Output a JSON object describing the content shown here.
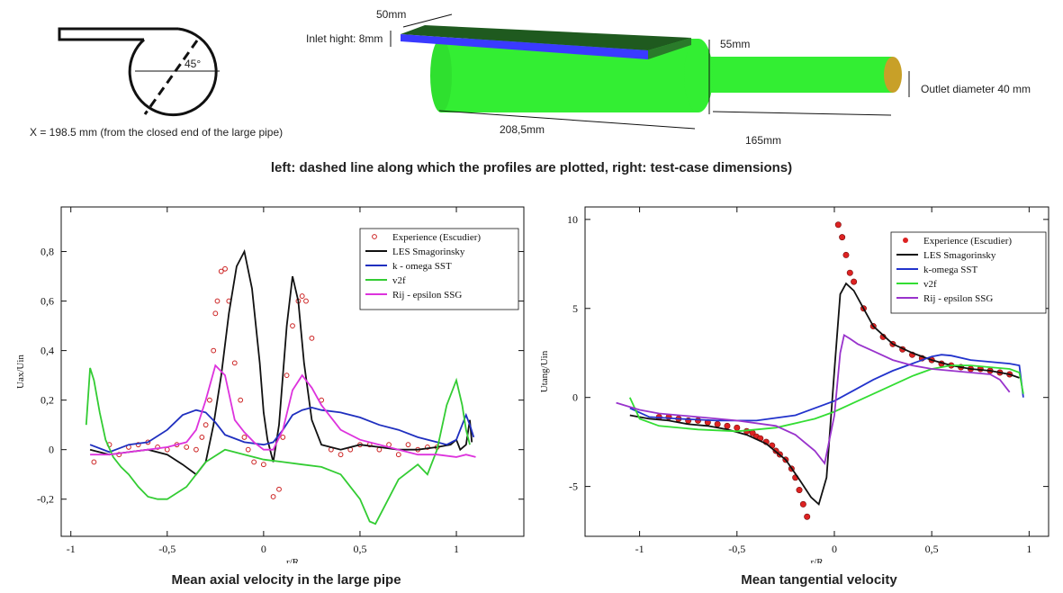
{
  "top": {
    "x_position_note": "X = 198.5 mm (from the closed end of the large pipe)",
    "angle_label": "45°",
    "inlet_width": "50mm",
    "inlet_height": "Inlet hight: 8mm",
    "large_diameter": "55mm",
    "outlet_diameter": "Outlet diameter 40 mm",
    "large_length": "208,5mm",
    "outlet_length": "165mm",
    "caption": "left: dashed line along which the profiles are plotted, right: test-case dimensions)",
    "colors": {
      "pipe": "#33ee33",
      "inlet_top": "#1f5a1f",
      "inlet_edge": "#3a3aff",
      "outlet_end": "#c8a028"
    }
  },
  "chart_data": [
    {
      "type": "line",
      "title": "Mean axial velocity in the large pipe",
      "xlabel": "r/R",
      "ylabel": "Uax/Uin",
      "xlim": [
        -1.05,
        1.35
      ],
      "ylim": [
        -0.35,
        0.98
      ],
      "xticks": [
        -1,
        -0.5,
        0,
        0.5,
        1
      ],
      "xtick_labels": [
        "-1",
        "-0,5",
        "0",
        "0,5",
        "1"
      ],
      "yticks": [
        -0.2,
        0,
        0.2,
        0.4,
        0.6,
        0.8
      ],
      "ytick_labels": [
        "-0,2",
        "0",
        "0,2",
        "0,4",
        "0,6",
        "0,8"
      ],
      "legend_position": "top-right",
      "series": [
        {
          "name": "Experience (Escudier)",
          "kind": "points",
          "color": "#cc2222",
          "x": [
            -0.88,
            -0.8,
            -0.75,
            -0.7,
            -0.65,
            -0.6,
            -0.55,
            -0.5,
            -0.45,
            -0.4,
            -0.35,
            -0.32,
            -0.3,
            -0.28,
            -0.26,
            -0.25,
            -0.24,
            -0.22,
            -0.2,
            -0.18,
            -0.15,
            -0.12,
            -0.1,
            -0.08,
            -0.05,
            0,
            0.05,
            0.08,
            0.1,
            0.12,
            0.15,
            0.18,
            0.2,
            0.22,
            0.25,
            0.3,
            0.35,
            0.4,
            0.45,
            0.5,
            0.55,
            0.6,
            0.65,
            0.7,
            0.75,
            0.8,
            0.85,
            0.9
          ],
          "y": [
            -0.05,
            0.02,
            -0.02,
            0.01,
            0.02,
            0.03,
            0.01,
            0.0,
            0.02,
            0.01,
            0.0,
            0.05,
            0.1,
            0.2,
            0.4,
            0.55,
            0.6,
            0.72,
            0.73,
            0.6,
            0.35,
            0.2,
            0.05,
            0.0,
            -0.05,
            -0.06,
            -0.19,
            -0.16,
            0.05,
            0.3,
            0.5,
            0.6,
            0.62,
            0.6,
            0.45,
            0.2,
            0.0,
            -0.02,
            0.0,
            0.02,
            0.02,
            0.0,
            0.02,
            -0.02,
            0.02,
            0.0,
            0.01,
            0.01
          ]
        },
        {
          "name": "LES Smagorinsky",
          "kind": "line",
          "color": "#111111",
          "x": [
            -0.9,
            -0.8,
            -0.7,
            -0.6,
            -0.5,
            -0.42,
            -0.35,
            -0.3,
            -0.26,
            -0.22,
            -0.18,
            -0.14,
            -0.1,
            -0.06,
            -0.02,
            0,
            0.02,
            0.05,
            0.08,
            0.12,
            0.15,
            0.18,
            0.21,
            0.25,
            0.3,
            0.4,
            0.5,
            0.6,
            0.7,
            0.8,
            0.9,
            0.97,
            1.0,
            1.02,
            1.05,
            1.07,
            1.08
          ],
          "y": [
            0.0,
            -0.02,
            -0.01,
            0.0,
            -0.02,
            -0.06,
            -0.1,
            -0.05,
            0.1,
            0.3,
            0.55,
            0.74,
            0.8,
            0.65,
            0.35,
            0.15,
            0.04,
            -0.05,
            0.1,
            0.5,
            0.7,
            0.6,
            0.35,
            0.12,
            0.02,
            0.0,
            0.02,
            0.01,
            0.0,
            0.0,
            0.01,
            0.02,
            0.04,
            0.0,
            0.02,
            0.12,
            0.03
          ]
        },
        {
          "name": "k - omega SST",
          "kind": "line",
          "color": "#1f2fbf",
          "x": [
            -0.9,
            -0.8,
            -0.7,
            -0.6,
            -0.5,
            -0.42,
            -0.35,
            -0.3,
            -0.25,
            -0.2,
            -0.1,
            0,
            0.05,
            0.1,
            0.15,
            0.2,
            0.25,
            0.3,
            0.4,
            0.5,
            0.6,
            0.7,
            0.8,
            0.9,
            0.95,
            1.0,
            1.02,
            1.05,
            1.07,
            1.09
          ],
          "y": [
            0.02,
            -0.01,
            0.02,
            0.03,
            0.08,
            0.14,
            0.16,
            0.15,
            0.11,
            0.06,
            0.03,
            0.02,
            0.03,
            0.08,
            0.14,
            0.16,
            0.17,
            0.16,
            0.15,
            0.13,
            0.1,
            0.08,
            0.05,
            0.03,
            0.02,
            0.04,
            0.08,
            0.14,
            0.1,
            0.05
          ]
        },
        {
          "name": "v2f",
          "kind": "line",
          "color": "#33cc33",
          "x": [
            -0.92,
            -0.9,
            -0.88,
            -0.85,
            -0.82,
            -0.78,
            -0.74,
            -0.7,
            -0.65,
            -0.6,
            -0.55,
            -0.5,
            -0.4,
            -0.3,
            -0.2,
            -0.1,
            0,
            0.1,
            0.2,
            0.3,
            0.4,
            0.5,
            0.55,
            0.58,
            0.62,
            0.7,
            0.8,
            0.85,
            0.9,
            0.95,
            1.0,
            1.03,
            1.05,
            1.07
          ],
          "y": [
            0.1,
            0.33,
            0.28,
            0.15,
            0.04,
            -0.03,
            -0.07,
            -0.1,
            -0.15,
            -0.19,
            -0.2,
            -0.2,
            -0.15,
            -0.05,
            0.0,
            -0.02,
            -0.04,
            -0.05,
            -0.06,
            -0.07,
            -0.1,
            -0.2,
            -0.29,
            -0.3,
            -0.24,
            -0.12,
            -0.06,
            -0.1,
            0.0,
            0.18,
            0.28,
            0.18,
            0.08,
            0.02
          ]
        },
        {
          "name": "Rij - epsilon SSG",
          "kind": "line",
          "color": "#dd33dd",
          "x": [
            -0.9,
            -0.8,
            -0.7,
            -0.6,
            -0.5,
            -0.4,
            -0.35,
            -0.3,
            -0.25,
            -0.2,
            -0.15,
            -0.1,
            -0.05,
            0,
            0.05,
            0.1,
            0.15,
            0.2,
            0.25,
            0.3,
            0.4,
            0.5,
            0.6,
            0.7,
            0.8,
            0.9,
            1.0,
            1.05,
            1.1
          ],
          "y": [
            -0.02,
            -0.02,
            -0.01,
            0.0,
            0.01,
            0.03,
            0.08,
            0.2,
            0.34,
            0.3,
            0.12,
            0.07,
            0.03,
            0.0,
            0.0,
            0.08,
            0.24,
            0.3,
            0.25,
            0.18,
            0.08,
            0.04,
            0.02,
            0.0,
            -0.02,
            -0.02,
            -0.03,
            -0.02,
            -0.03
          ]
        }
      ]
    },
    {
      "type": "line",
      "title": "Mean tangential velocity",
      "xlabel": "r/R",
      "ylabel": "Utang/Uin",
      "xlim": [
        -1.28,
        1.1
      ],
      "ylim": [
        -7.8,
        10.7
      ],
      "xticks": [
        -1,
        -0.5,
        0,
        0.5,
        1
      ],
      "xtick_labels": [
        "-1",
        "-0,5",
        "0",
        "0,5",
        "1"
      ],
      "yticks": [
        -5,
        0,
        5,
        10
      ],
      "ytick_labels": [
        "-5",
        "0",
        "5",
        "10"
      ],
      "legend_position": "top-right",
      "series": [
        {
          "name": "Experience (Escudier)",
          "kind": "points",
          "color": "#dd2222",
          "x": [
            -0.9,
            -0.85,
            -0.8,
            -0.75,
            -0.7,
            -0.65,
            -0.6,
            -0.55,
            -0.5,
            -0.45,
            -0.42,
            -0.4,
            -0.38,
            -0.35,
            -0.32,
            -0.3,
            -0.28,
            -0.25,
            -0.22,
            -0.2,
            -0.18,
            -0.16,
            -0.14,
            0.02,
            0.04,
            0.06,
            0.08,
            0.1,
            0.15,
            0.2,
            0.25,
            0.3,
            0.35,
            0.4,
            0.45,
            0.5,
            0.55,
            0.6,
            0.65,
            0.7,
            0.75,
            0.8,
            0.85,
            0.9
          ],
          "y": [
            -1.1,
            -1.1,
            -1.2,
            -1.3,
            -1.3,
            -1.4,
            -1.5,
            -1.6,
            -1.7,
            -1.9,
            -2.0,
            -2.2,
            -2.3,
            -2.5,
            -2.7,
            -3.0,
            -3.2,
            -3.5,
            -4.0,
            -4.5,
            -5.2,
            -6.0,
            -6.7,
            9.7,
            9.0,
            8.0,
            7.0,
            6.5,
            5.0,
            4.0,
            3.4,
            3.0,
            2.7,
            2.4,
            2.2,
            2.1,
            1.9,
            1.8,
            1.7,
            1.6,
            1.6,
            1.5,
            1.4,
            1.3
          ]
        },
        {
          "name": "LES Smagorinsky",
          "kind": "line",
          "color": "#111111",
          "x": [
            -1.05,
            -0.95,
            -0.85,
            -0.75,
            -0.65,
            -0.55,
            -0.45,
            -0.35,
            -0.25,
            -0.18,
            -0.12,
            -0.08,
            -0.04,
            0,
            0.03,
            0.06,
            0.1,
            0.15,
            0.2,
            0.3,
            0.4,
            0.5,
            0.6,
            0.7,
            0.8,
            0.9,
            0.95
          ],
          "y": [
            -1.0,
            -1.2,
            -1.3,
            -1.5,
            -1.6,
            -1.8,
            -2.1,
            -2.6,
            -3.5,
            -4.6,
            -5.6,
            -6.0,
            -4.5,
            1.5,
            5.8,
            6.4,
            6.0,
            5.0,
            4.0,
            3.0,
            2.5,
            2.1,
            1.8,
            1.6,
            1.5,
            1.3,
            1.1
          ]
        },
        {
          "name": "k-omega SST",
          "kind": "line",
          "color": "#2233cc",
          "x": [
            -1.05,
            -0.95,
            -0.8,
            -0.6,
            -0.4,
            -0.2,
            0,
            0.1,
            0.2,
            0.3,
            0.4,
            0.5,
            0.55,
            0.6,
            0.7,
            0.8,
            0.9,
            0.95,
            0.97
          ],
          "y": [
            -0.6,
            -1.1,
            -1.2,
            -1.3,
            -1.3,
            -1.0,
            -0.2,
            0.4,
            1.0,
            1.5,
            1.9,
            2.3,
            2.4,
            2.35,
            2.1,
            2.0,
            1.9,
            1.8,
            0.0
          ]
        },
        {
          "name": "v2f",
          "kind": "line",
          "color": "#33dd33",
          "x": [
            -1.05,
            -1.0,
            -0.9,
            -0.7,
            -0.5,
            -0.3,
            -0.1,
            0,
            0.1,
            0.2,
            0.3,
            0.4,
            0.5,
            0.6,
            0.7,
            0.8,
            0.9,
            0.95,
            0.97
          ],
          "y": [
            0.0,
            -1.2,
            -1.6,
            -1.8,
            -1.9,
            -1.7,
            -1.2,
            -0.8,
            -0.3,
            0.2,
            0.7,
            1.2,
            1.6,
            1.8,
            1.8,
            1.7,
            1.6,
            1.4,
            0.2
          ]
        },
        {
          "name": "Rij - epsilon SSG",
          "kind": "line",
          "color": "#9933cc",
          "x": [
            -1.12,
            -1.0,
            -0.9,
            -0.7,
            -0.5,
            -0.3,
            -0.2,
            -0.1,
            -0.05,
            0,
            0.03,
            0.05,
            0.08,
            0.12,
            0.2,
            0.3,
            0.4,
            0.5,
            0.6,
            0.7,
            0.8,
            0.85,
            0.9
          ],
          "y": [
            -0.3,
            -0.7,
            -0.9,
            -1.1,
            -1.3,
            -1.6,
            -2.1,
            -3.0,
            -3.7,
            -1.0,
            2.5,
            3.5,
            3.3,
            3.0,
            2.6,
            2.1,
            1.8,
            1.6,
            1.5,
            1.4,
            1.3,
            1.0,
            0.3
          ]
        }
      ]
    }
  ]
}
